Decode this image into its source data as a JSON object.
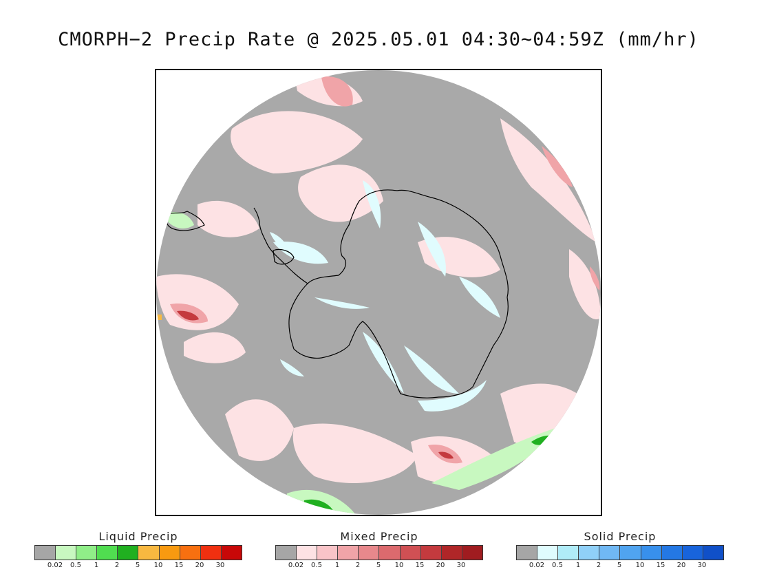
{
  "title": "CMORPH−2 Precip Rate @ 2025.05.01 04:30∼04:59Z (mm/hr)",
  "map": {
    "projection": "south-polar-stereographic",
    "background_color": "#a9a9a9",
    "coastline_color": "#000000"
  },
  "legends": [
    {
      "title": "Liquid Precip",
      "colors": [
        "#a6a6a6",
        "#c8f8c0",
        "#90ee88",
        "#50dd50",
        "#20b020",
        "#f8b840",
        "#f89a10",
        "#f87010",
        "#f03010",
        "#c80808"
      ],
      "ticks": [
        "0.02",
        "0.5",
        "1",
        "2",
        "5",
        "10",
        "15",
        "20",
        "30"
      ]
    },
    {
      "title": "Mixed Precip",
      "colors": [
        "#a6a6a6",
        "#fde2e4",
        "#f9c4c8",
        "#f0a4a8",
        "#e8888c",
        "#dc6a6e",
        "#d05054",
        "#c43a3e",
        "#b02628",
        "#a01c20"
      ],
      "ticks": [
        "0.02",
        "0.5",
        "1",
        "2",
        "5",
        "10",
        "15",
        "20",
        "30"
      ]
    },
    {
      "title": "Solid Precip",
      "colors": [
        "#a6a6a6",
        "#e0fcfe",
        "#b0ecf8",
        "#90d0f8",
        "#70b8f4",
        "#50a4f0",
        "#3890ec",
        "#2478e4",
        "#1864dc",
        "#1050c8"
      ],
      "ticks": [
        "0.02",
        "0.5",
        "1",
        "2",
        "5",
        "10",
        "15",
        "20",
        "30"
      ]
    }
  ]
}
